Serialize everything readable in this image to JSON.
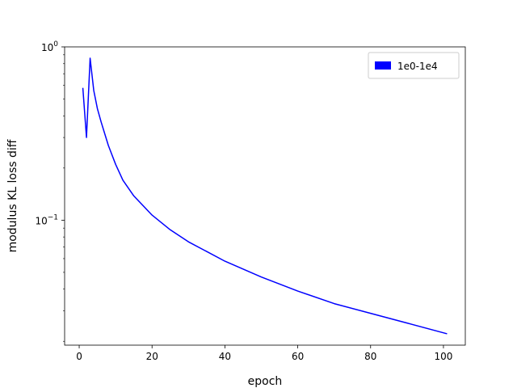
{
  "chart_data": {
    "type": "line",
    "title": "",
    "xlabel": "epoch",
    "ylabel": "modulus KL loss diff",
    "xscale": "linear",
    "yscale": "log",
    "xlim": [
      -4,
      106
    ],
    "ylim": [
      0.019,
      1.0
    ],
    "xticks": [
      0,
      20,
      40,
      60,
      80,
      100
    ],
    "xtick_labels": [
      "0",
      "20",
      "40",
      "60",
      "80",
      "100"
    ],
    "yticks": [
      1.0,
      0.1
    ],
    "ytick_labels": [
      {
        "base": "10",
        "exp": "0"
      },
      {
        "base": "10",
        "exp": "−1"
      }
    ],
    "grid": false,
    "legend_position": "top-right",
    "series": [
      {
        "name": "1e0-1e4",
        "color": "#0000ff",
        "x": [
          1,
          2,
          3,
          4,
          5,
          6,
          8,
          10,
          12,
          15,
          20,
          25,
          30,
          40,
          50,
          60,
          70,
          80,
          90,
          101
        ],
        "y": [
          0.58,
          0.3,
          0.86,
          0.56,
          0.44,
          0.37,
          0.27,
          0.21,
          0.17,
          0.138,
          0.107,
          0.088,
          0.075,
          0.058,
          0.047,
          0.039,
          0.033,
          0.029,
          0.0255,
          0.0221
        ]
      }
    ]
  }
}
